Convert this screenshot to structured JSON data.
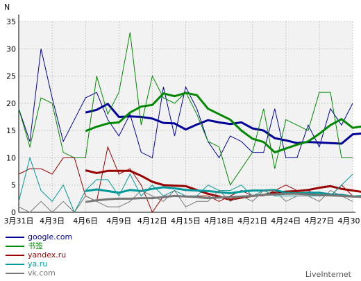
{
  "chart_data": {
    "type": "line",
    "ylabel": "N",
    "ylim": [
      0,
      35
    ],
    "yticks": [
      0,
      5,
      10,
      15,
      20,
      25,
      30,
      35
    ],
    "xticks": [
      "3月31日",
      "4月3日",
      "4月6日",
      "4月9日",
      "4月12日",
      "4月15日",
      "4月18日",
      "4月21日",
      "4月24日",
      "4月27日",
      "4月30日"
    ],
    "grid": true,
    "series": [
      {
        "name": "google.com",
        "color": "#000099",
        "daily": [
          19,
          13,
          30,
          21,
          13,
          17,
          21,
          22,
          17,
          14,
          18,
          11,
          10,
          23,
          14,
          23,
          19,
          13,
          10,
          14,
          13,
          11,
          11,
          19,
          10,
          10,
          16,
          12,
          19,
          16,
          20
        ],
        "trend_start_day": 6,
        "trend": [
          18.3,
          18.8,
          19.9,
          17.5,
          17.6,
          17.5,
          17.2,
          16.4,
          16.3,
          15.2,
          16.1,
          16.9,
          16.5,
          16.2,
          16.5,
          15.4,
          15.0,
          13.6,
          13.2,
          12.7,
          12.9,
          12.8,
          12.7,
          12.6,
          14.3,
          14.5,
          14.8
        ]
      },
      {
        "name": "书签",
        "color": "#008800",
        "daily": [
          19,
          12,
          21,
          20,
          11,
          10,
          10,
          25,
          18,
          22,
          33,
          16,
          25,
          21,
          20,
          22,
          18,
          13,
          12,
          5,
          8,
          11,
          19,
          8,
          17,
          16,
          15,
          22,
          22,
          10,
          10
        ],
        "trend_start_day": 6,
        "trend": [
          14.9,
          15.7,
          16.3,
          16.5,
          18.3,
          19.4,
          19.7,
          21.8,
          21.3,
          21.9,
          21.5,
          19.0,
          18.0,
          17.0,
          15.0,
          13.5,
          12.9,
          11.0,
          11.7,
          12.4,
          13.0,
          14.4,
          16.0,
          17.1,
          15.5,
          15.8,
          16.1
        ]
      },
      {
        "name": "yandex.ru",
        "color": "#990000",
        "daily": [
          7,
          8,
          8,
          7,
          10,
          10,
          3,
          2,
          12,
          7,
          8,
          5,
          0,
          3,
          3,
          3,
          3,
          3,
          2,
          3,
          4,
          3,
          3,
          4,
          5,
          4,
          4,
          3,
          3,
          5,
          3
        ],
        "trend_start_day": 6,
        "trend": [
          7.7,
          7.2,
          7.6,
          7.6,
          7.6,
          6.7,
          5.6,
          5.0,
          4.9,
          4.8,
          4.1,
          3.4,
          2.9,
          2.3,
          2.7,
          3.0,
          3.2,
          3.6,
          3.8,
          3.9,
          4.1,
          4.5,
          4.8,
          4.3,
          4.0,
          3.7,
          3.4
        ]
      },
      {
        "name": "ya.ru",
        "color": "#009999",
        "daily": [
          2,
          10,
          4,
          2,
          5,
          0,
          4,
          6,
          6,
          3,
          7,
          3,
          5,
          3,
          4,
          3,
          3,
          5,
          4,
          4,
          5,
          3,
          4,
          3,
          3,
          3,
          3,
          3,
          3,
          5,
          7
        ],
        "trend_start_day": 6,
        "trend": [
          3.9,
          4.2,
          3.9,
          3.6,
          4.1,
          3.9,
          4.3,
          4.6,
          4.4,
          4.1,
          4.0,
          3.9,
          3.7,
          3.5,
          3.8,
          4.0,
          4.0,
          4.1,
          3.6,
          3.5,
          3.6,
          3.6,
          3.3,
          3.2,
          2.9,
          3.0,
          3.4
        ]
      },
      {
        "name": "vk.com",
        "color": "#777777",
        "daily": [
          1,
          0,
          2,
          0,
          2,
          0,
          3,
          2,
          1,
          1,
          2,
          4,
          3,
          2,
          4,
          1,
          2,
          2,
          4,
          2,
          3,
          2,
          4,
          4,
          2,
          3,
          3,
          2,
          4,
          3,
          2
        ],
        "trend_start_day": 6,
        "trend": [
          1.9,
          2.2,
          2.4,
          2.5,
          2.5,
          2.6,
          2.6,
          2.8,
          3.0,
          2.9,
          2.8,
          2.6,
          2.7,
          2.8,
          2.9,
          3.0,
          3.2,
          3.3,
          3.4,
          3.4,
          3.3,
          3.2,
          3.1,
          3.0,
          2.9,
          2.8,
          2.8
        ]
      }
    ]
  },
  "footer": {
    "brand": "LiveInternet"
  }
}
